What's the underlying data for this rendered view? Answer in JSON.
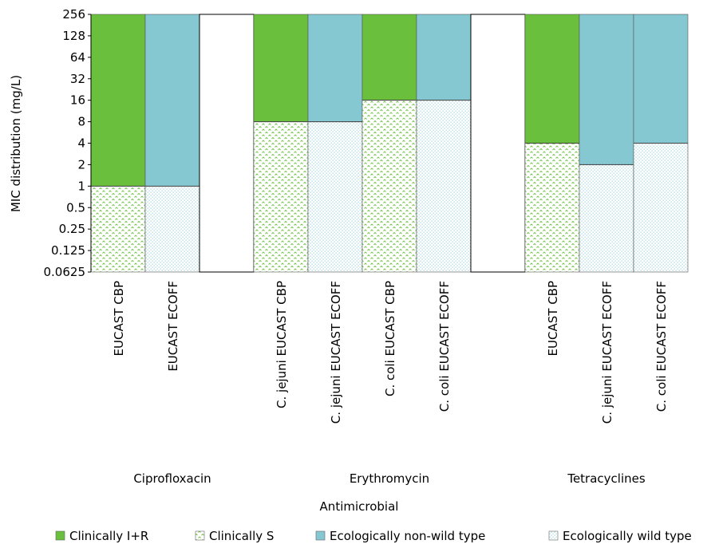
{
  "chart_data": {
    "type": "bar",
    "ylabel": "MIC  distribution (mg/L)",
    "xlabel": "Antimicrobial",
    "yscale": "log2",
    "ylim": [
      0.0625,
      256
    ],
    "yticks": [
      "256",
      "128",
      "64",
      "32",
      "16",
      "8",
      "4",
      "2",
      "1",
      "0.5",
      "0.25",
      "0.125",
      "0.0625"
    ],
    "groups": [
      {
        "name": "Ciprofloxacin",
        "categories": [
          {
            "label": "EUCAST CBP",
            "kind": "clinical",
            "threshold": 1
          },
          {
            "label": "EUCAST ECOFF",
            "kind": "ecological",
            "threshold": 1
          },
          {
            "label": "",
            "kind": "blank",
            "threshold": null
          }
        ]
      },
      {
        "name": "Erythromycin",
        "categories": [
          {
            "label": "C. jejuni EUCAST CBP",
            "kind": "clinical",
            "threshold": 8
          },
          {
            "label": "C. jejuni EUCAST ECOFF",
            "kind": "ecological",
            "threshold": 8
          },
          {
            "label": "C. coli EUCAST CBP",
            "kind": "clinical",
            "threshold": 16
          },
          {
            "label": "C. coli EUCAST ECOFF",
            "kind": "ecological",
            "threshold": 16
          },
          {
            "label": "",
            "kind": "blank",
            "threshold": null
          }
        ]
      },
      {
        "name": "Tetracyclines",
        "categories": [
          {
            "label": "EUCAST CBP",
            "kind": "clinical",
            "threshold": 4
          },
          {
            "label": "C. jejuni EUCAST ECOFF",
            "kind": "ecological",
            "threshold": 2
          },
          {
            "label": "C. coli EUCAST ECOFF",
            "kind": "ecological",
            "threshold": 4
          }
        ]
      }
    ],
    "legend": [
      {
        "label": "Clinically I+R",
        "key": "clinical_ir",
        "color": "#6abf3c"
      },
      {
        "label": "Clinically S",
        "key": "clinical_s",
        "color": "#6abf3c"
      },
      {
        "label": "Ecologically non-wild type",
        "key": "eco_nwt",
        "color": "#85c8d2"
      },
      {
        "label": "Ecologically wild type",
        "key": "eco_wt",
        "color": "#85c8d2"
      }
    ],
    "legend_position": "bottom",
    "grid": false
  }
}
